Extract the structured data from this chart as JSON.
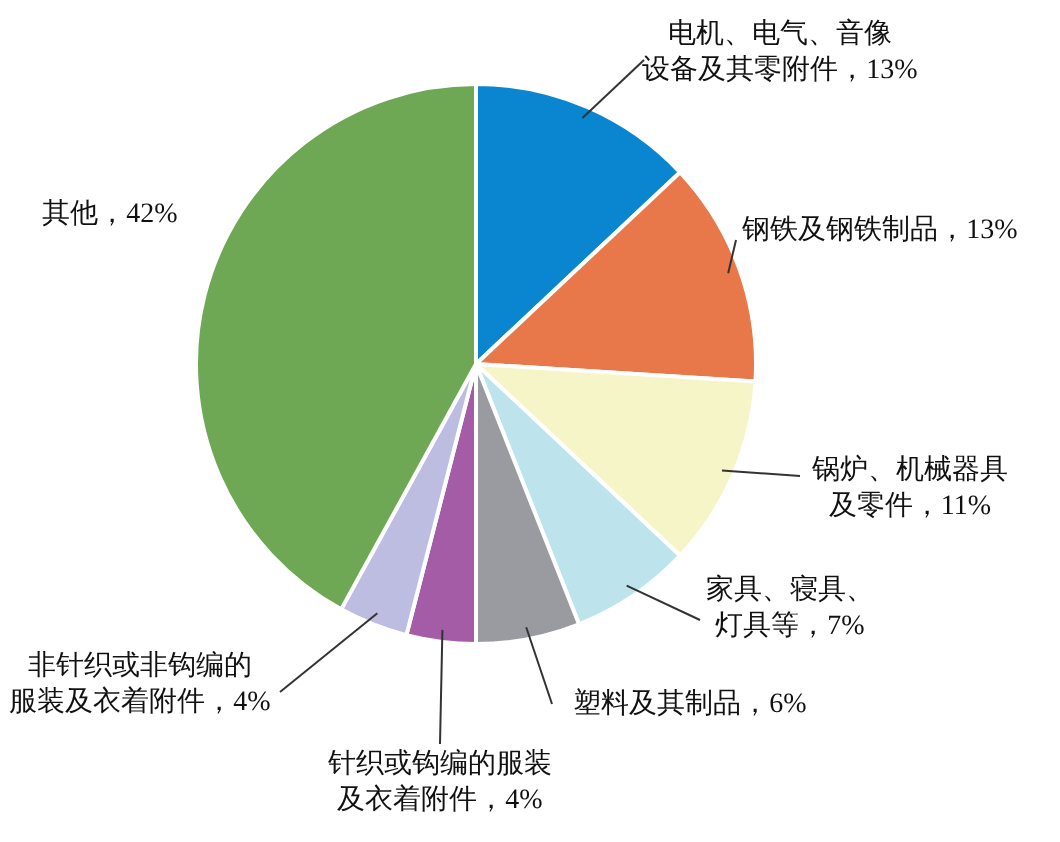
{
  "chart_data": {
    "type": "pie",
    "categories": [
      "电机、电气、音像设备及其零附件",
      "钢铁及钢铁制品",
      "锅炉、机械器具及零件",
      "家具、寝具、灯具等",
      "塑料及其制品",
      "针织或钩编的服装及衣着附件",
      "非针织或非钩编的服装及衣着附件",
      "其他"
    ],
    "values": [
      13,
      13,
      11,
      7,
      6,
      4,
      4,
      42
    ],
    "value_labels": [
      "13%",
      "13%",
      "11%",
      "7%",
      "6%",
      "4%",
      "4%",
      "42%"
    ],
    "colors": [
      "#0a86d0",
      "#e8784a",
      "#f5f5c8",
      "#bde4ec",
      "#9a9ba0",
      "#a55ca6",
      "#bcbde0",
      "#6ea854"
    ]
  }
}
